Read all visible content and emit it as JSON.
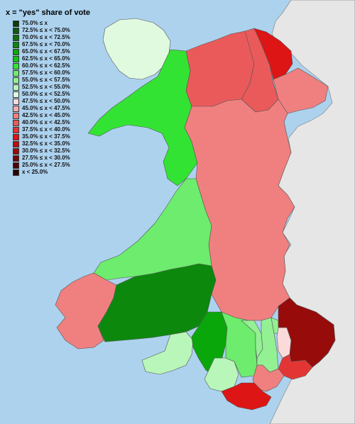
{
  "legend": {
    "title": "x = \"yes\" share of vote",
    "items": [
      {
        "label": "75.0% ≤ x",
        "color": "#0b3d0b"
      },
      {
        "label": "72.5% ≤ x < 75.0%",
        "color": "#0f5a0f"
      },
      {
        "label": "70.0% ≤ x < 72.5%",
        "color": "#0e700e"
      },
      {
        "label": "67.5% ≤ x < 70.0%",
        "color": "#0c890c"
      },
      {
        "label": "65.0% ≤ x < 67.5%",
        "color": "#0aa70a"
      },
      {
        "label": "62.5% ≤ x < 65.0%",
        "color": "#11c211"
      },
      {
        "label": "60.0% ≤ x < 62.5%",
        "color": "#33e333"
      },
      {
        "label": "57.5% ≤ x < 60.0%",
        "color": "#6dec6d"
      },
      {
        "label": "55.0% ≤ x < 57.5%",
        "color": "#93f193"
      },
      {
        "label": "52.5% ≤ x < 55.0%",
        "color": "#b9f6b9"
      },
      {
        "label": "50.0% ≤ x < 52.5%",
        "color": "#e0fae0"
      },
      {
        "label": "47.5% ≤ x < 50.0%",
        "color": "#fbdada"
      },
      {
        "label": "45.0% ≤ x < 47.5%",
        "color": "#f5adad"
      },
      {
        "label": "42.5% ≤ x < 45.0%",
        "color": "#f08080"
      },
      {
        "label": "40.0% ≤ x < 42.5%",
        "color": "#ea5a5a"
      },
      {
        "label": "37.5% ≤ x < 40.0%",
        "color": "#e43535"
      },
      {
        "label": "35.0% ≤ x < 37.5%",
        "color": "#dd1515"
      },
      {
        "label": "32.5% ≤ x < 35.0%",
        "color": "#b80f0f"
      },
      {
        "label": "30.0% ≤ x < 32.5%",
        "color": "#970b0b"
      },
      {
        "label": "27.5% ≤ x < 30.0%",
        "color": "#700808"
      },
      {
        "label": "25.0% ≤ x < 27.5%",
        "color": "#4d0404"
      },
      {
        "label": "x < 25.0%",
        "color": "#2a0202"
      }
    ]
  },
  "colors": {
    "sea": "#acd2ee",
    "neighbour_land": "#e6e6e6",
    "border": "#555555"
  }
}
